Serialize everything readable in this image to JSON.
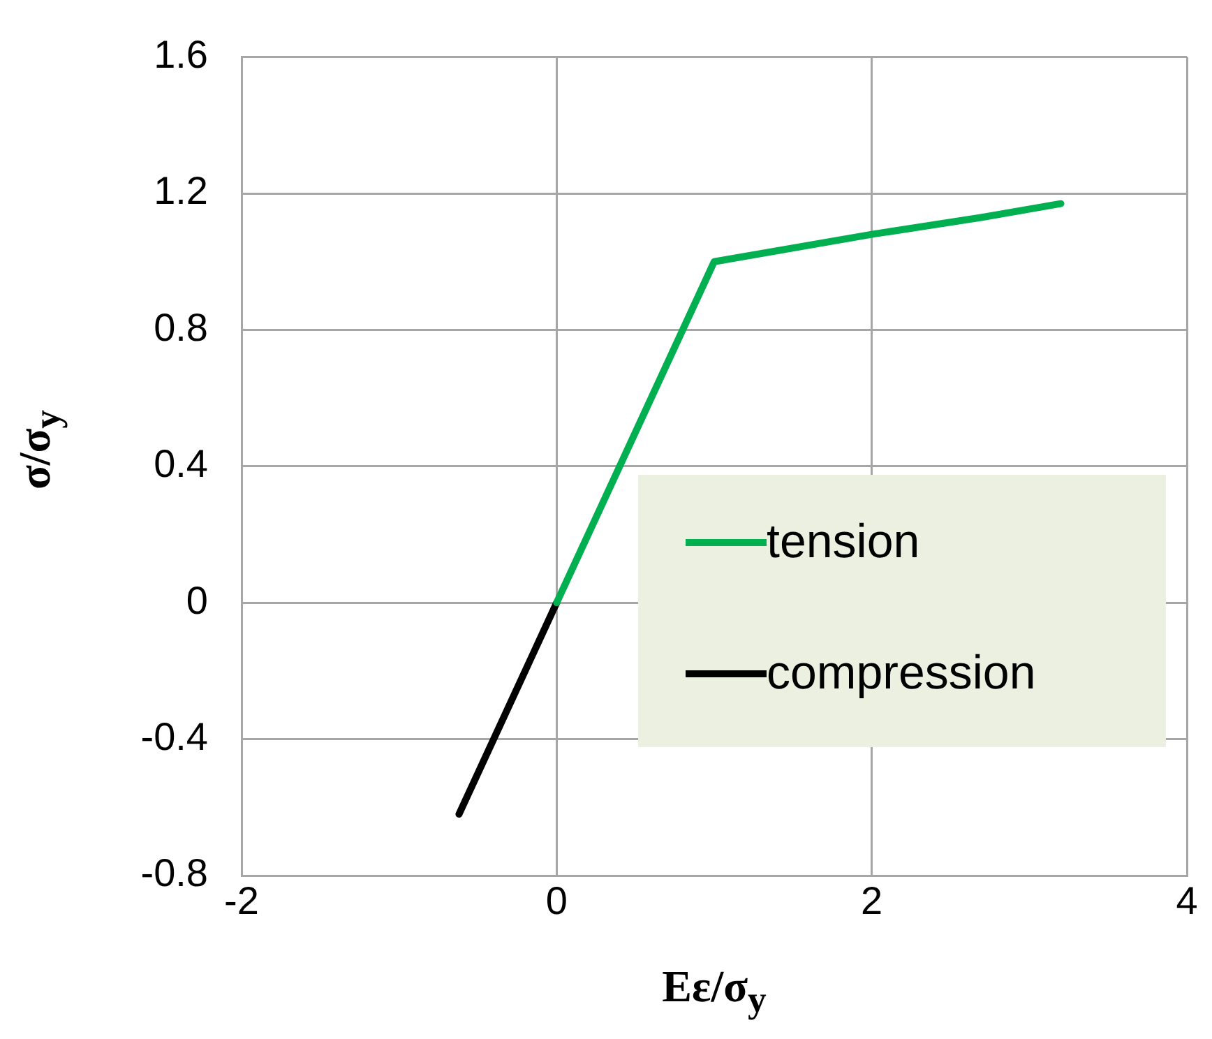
{
  "chart_data": {
    "type": "line",
    "xlabel": "Eε/σ$_{y}$",
    "ylabel": "σ/σ$_{y}$",
    "xlim": [
      -2,
      4
    ],
    "xticks": [
      -2,
      0,
      2,
      4
    ],
    "ylim": [
      -0.8,
      1.6
    ],
    "yticks": [
      -0.8,
      -0.4,
      0,
      0.4,
      0.8,
      1.2,
      1.6
    ],
    "grid": true,
    "legend": "right",
    "marker": "none",
    "line_style": "solid",
    "series": [
      {
        "name": "tension",
        "color": "#00b050",
        "x": [
          0,
          1,
          2,
          2.7,
          3.2
        ],
        "values": [
          0,
          1,
          1.08,
          1.13,
          1.17
        ]
      },
      {
        "name": "compression",
        "color": "#000000",
        "x": [
          0,
          -0.62
        ],
        "values": [
          0,
          -0.62
        ]
      }
    ]
  }
}
